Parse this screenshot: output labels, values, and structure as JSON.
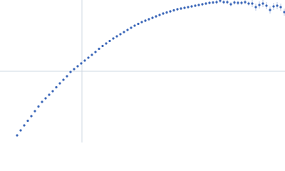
{
  "chart_data": {
    "type": "scatter",
    "x": [
      24,
      29,
      34,
      39,
      44,
      49,
      54,
      59,
      64,
      69,
      74,
      79,
      84,
      89,
      94,
      99,
      104,
      109,
      114,
      119,
      124,
      129,
      134,
      139,
      144,
      149,
      154,
      159,
      164,
      169,
      174,
      179,
      184,
      189,
      194,
      199,
      204,
      209,
      214,
      219,
      224,
      229,
      234,
      239,
      244,
      249,
      254,
      259,
      264,
      269,
      274,
      279,
      284,
      289,
      294,
      299,
      304,
      309,
      314,
      319,
      324,
      329,
      334,
      339,
      344,
      349,
      354,
      359,
      364,
      369,
      374,
      379,
      384,
      389,
      394,
      399
    ],
    "series": [
      {
        "color": "#3a66b8",
        "values": [
          10,
          17,
          24,
          30.5,
          37,
          44,
          50.5,
          57,
          62,
          67,
          72,
          77.5,
          83,
          88,
          93,
          99,
          103,
          107,
          111,
          115,
          119,
          123,
          127,
          131.5,
          135.5,
          139,
          142.5,
          146,
          149,
          152,
          155,
          158,
          161,
          164,
          166.5,
          169,
          171,
          173,
          175,
          177,
          179,
          181,
          182.5,
          184,
          185.5,
          187,
          188,
          189,
          190,
          191,
          192,
          193,
          194,
          195,
          196,
          196.5,
          197,
          199,
          197,
          197,
          194,
          196.5,
          196,
          196,
          197,
          195,
          195,
          190,
          193,
          195,
          192,
          186,
          191,
          192,
          190,
          183
        ],
        "errors": [
          1,
          1,
          1,
          1,
          1,
          1,
          1,
          1,
          1,
          1,
          1,
          1,
          1,
          1,
          1,
          1,
          1,
          1,
          1,
          1,
          1,
          1,
          1,
          1,
          1,
          1,
          1,
          1,
          1,
          1,
          1,
          1,
          1,
          1,
          1,
          1,
          2,
          2,
          2,
          2,
          2,
          2,
          2,
          2,
          2,
          2,
          2,
          2,
          2,
          2,
          2,
          2,
          2,
          2,
          2,
          2,
          3,
          3,
          3,
          3,
          3,
          3,
          3,
          3,
          3,
          3,
          5,
          5,
          5,
          5,
          5,
          5,
          5,
          5,
          5,
          5
        ]
      }
    ],
    "xlim": [
      0,
      400
    ],
    "ylim": [
      0,
      200
    ],
    "xticks": [
      115
    ],
    "yticks": [
      100
    ],
    "grid": true
  }
}
